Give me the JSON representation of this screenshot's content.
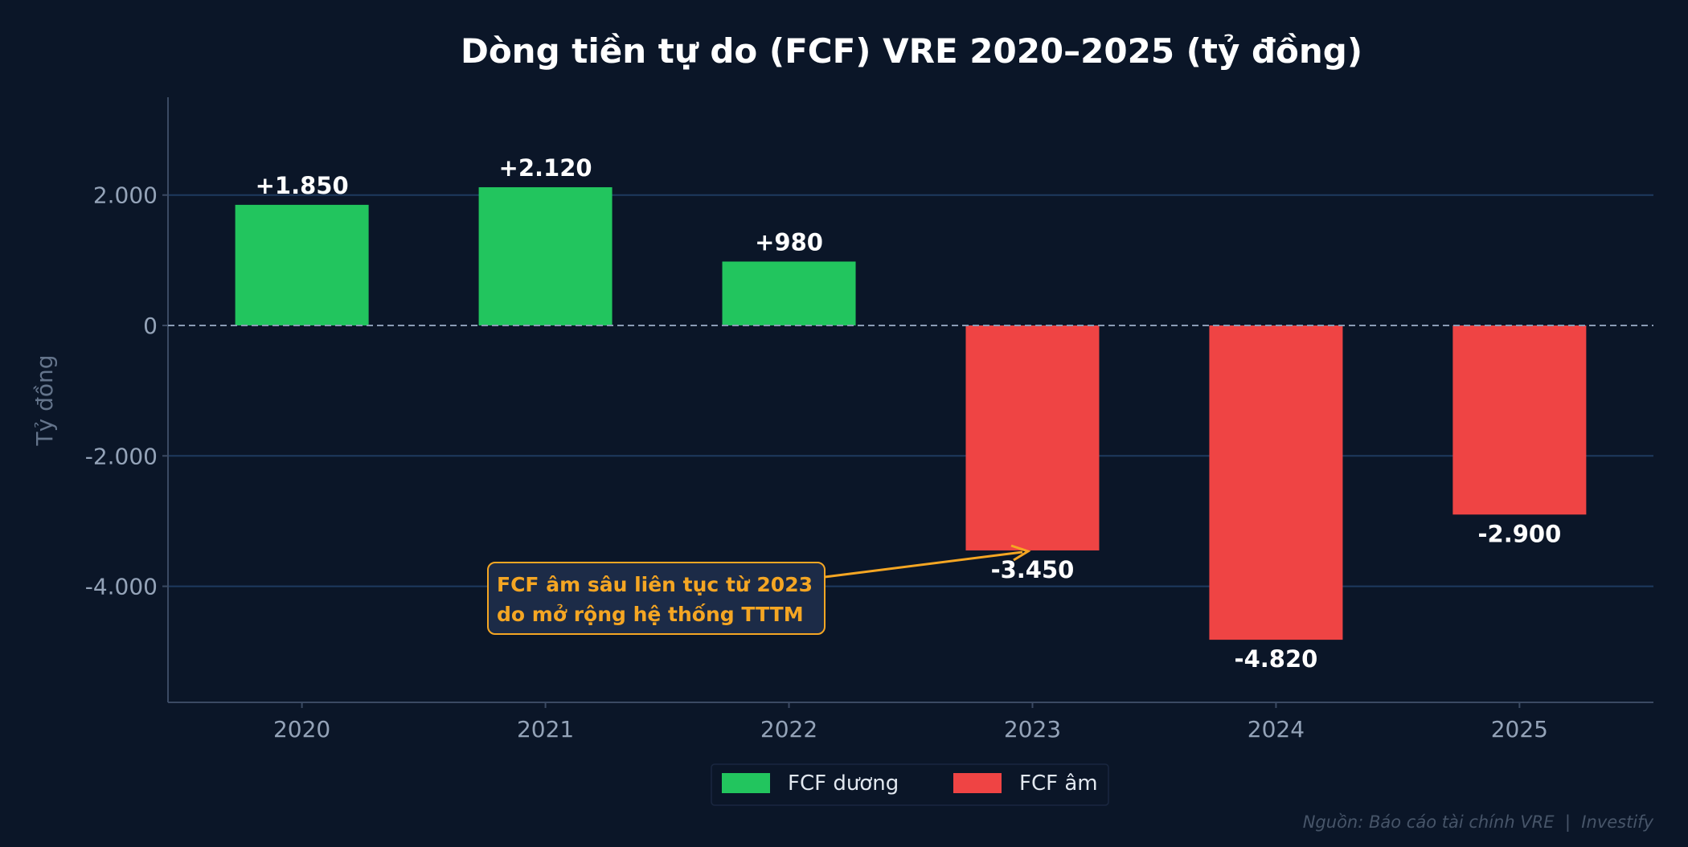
{
  "colors": {
    "background": "#0b1628",
    "positive": "#22c55e",
    "negative": "#ef4444",
    "grid": "#1e3a5f",
    "axis": "#3b4a63",
    "tick_text": "#94a3b8",
    "annotation": "#f5a623",
    "annotation_bg": "#1c2b47"
  },
  "chart_data": {
    "type": "bar",
    "title": "Dòng tiền tự do (FCF) VRE 2020–2025 (tỷ đồng)",
    "xlabel": "",
    "ylabel": "Tỷ đồng",
    "categories": [
      "2020",
      "2021",
      "2022",
      "2023",
      "2024",
      "2025"
    ],
    "values": [
      1850,
      2120,
      980,
      -3450,
      -4820,
      -2900
    ],
    "data_labels": [
      "+1.850",
      "+2.120",
      "+980",
      "-3.450",
      "-4.820",
      "-2.900"
    ],
    "ylim": [
      -5780,
      3500
    ],
    "yticks": [
      2000,
      0,
      -2000,
      -4000
    ],
    "ytick_labels": [
      "2.000",
      "0",
      "-2.000",
      "-4.000"
    ],
    "grid": true,
    "legend": {
      "placement": "bottom-center",
      "entries": [
        {
          "label": "FCF dương",
          "color": "#22c55e"
        },
        {
          "label": "FCF âm",
          "color": "#ef4444"
        }
      ]
    },
    "annotation": {
      "lines": [
        "FCF âm sâu liên tục từ 2023",
        "do mở rộng hệ thống TTTM"
      ],
      "target_category": "2023",
      "target_value": -3450
    }
  },
  "source": "Nguồn: Báo cáo tài chính VRE  |  Investify"
}
